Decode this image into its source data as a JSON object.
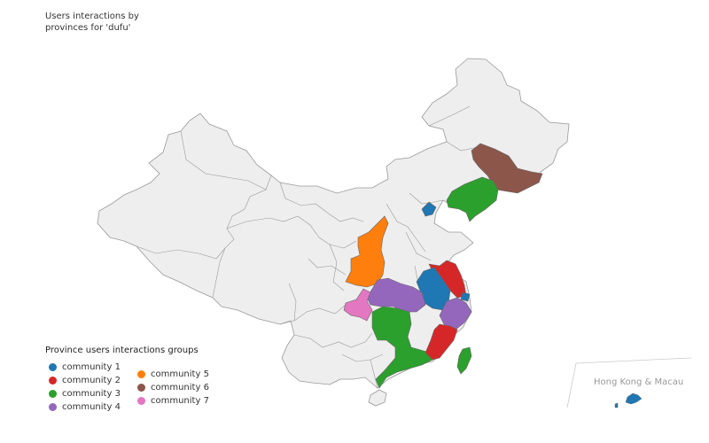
{
  "title": "Users interactions by provinces for 'dufu'",
  "legend": {
    "title": "Province users interactions groups",
    "items": [
      {
        "label": "community 1",
        "color": "#1f77b4"
      },
      {
        "label": "community 2",
        "color": "#d62728"
      },
      {
        "label": "community 3",
        "color": "#2ca02c"
      },
      {
        "label": "community 4",
        "color": "#9467bd"
      },
      {
        "label": "community 5",
        "color": "#ff7f0e"
      },
      {
        "label": "community 6",
        "color": "#8c564b"
      },
      {
        "label": "community 7",
        "color": "#e377c2"
      }
    ]
  },
  "inset": {
    "label": "Hong Kong & Macau"
  },
  "colors": {
    "base": "#eeeeee",
    "border": "#999999"
  }
}
